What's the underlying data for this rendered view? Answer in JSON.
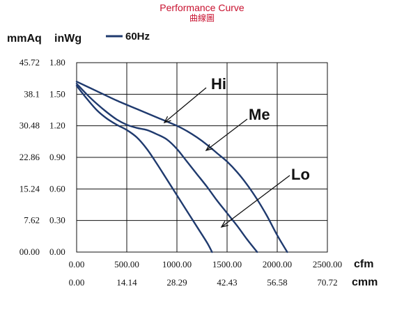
{
  "chart_data": {
    "type": "line",
    "title": "Performance Curve",
    "subtitle": "曲線圖",
    "y_units": [
      "mmAq",
      "inWg"
    ],
    "x_units": [
      "cfm",
      "cmm"
    ],
    "legend": [
      {
        "label": "60Hz",
        "color": "#1f3a6e"
      }
    ],
    "xlim": [
      0,
      2500
    ],
    "ylim": [
      0,
      1.8
    ],
    "x_ticks_cfm": [
      "0.00",
      "500.00",
      "1000.00",
      "1500.00",
      "2000.00",
      "2500.00"
    ],
    "x_ticks_cmm": [
      "0.00",
      "14.14",
      "28.29",
      "42.43",
      "56.58",
      "70.72"
    ],
    "y_ticks_inwg": [
      "0.00",
      "0.30",
      "0.60",
      "0.90",
      "1.20",
      "1.50",
      "1.80"
    ],
    "y_ticks_mmaq": [
      "00.00",
      "7.62",
      "15.24",
      "22.86",
      "30.48",
      "38.1",
      "45.72"
    ],
    "grid": true,
    "series": [
      {
        "name": "Hi",
        "color": "#1f3a6e",
        "x": [
          0,
          200,
          400,
          600,
          800,
          1000,
          1100,
          1200,
          1300,
          1400,
          1500,
          1600,
          1700,
          1800,
          1900,
          2000,
          2100
        ],
        "y": [
          1.62,
          1.53,
          1.44,
          1.36,
          1.28,
          1.2,
          1.15,
          1.09,
          1.02,
          0.94,
          0.86,
          0.76,
          0.64,
          0.5,
          0.34,
          0.16,
          0.0
        ]
      },
      {
        "name": "Me",
        "color": "#1f3a6e",
        "x": [
          0,
          100,
          200,
          300,
          400,
          500,
          600,
          700,
          800,
          900,
          1000,
          1100,
          1200,
          1300,
          1400,
          1500,
          1600,
          1700,
          1800
        ],
        "y": [
          1.6,
          1.5,
          1.41,
          1.33,
          1.26,
          1.21,
          1.18,
          1.16,
          1.12,
          1.07,
          0.98,
          0.86,
          0.74,
          0.62,
          0.49,
          0.37,
          0.25,
          0.12,
          0.0
        ]
      },
      {
        "name": "Lo",
        "color": "#1f3a6e",
        "x": [
          0,
          100,
          200,
          300,
          400,
          500,
          600,
          700,
          800,
          900,
          1000,
          1100,
          1200,
          1300,
          1350
        ],
        "y": [
          1.58,
          1.46,
          1.35,
          1.27,
          1.21,
          1.16,
          1.09,
          0.98,
          0.84,
          0.69,
          0.54,
          0.39,
          0.24,
          0.09,
          0.0
        ]
      }
    ],
    "annotations": [
      "Hi",
      "Me",
      "Lo"
    ]
  }
}
